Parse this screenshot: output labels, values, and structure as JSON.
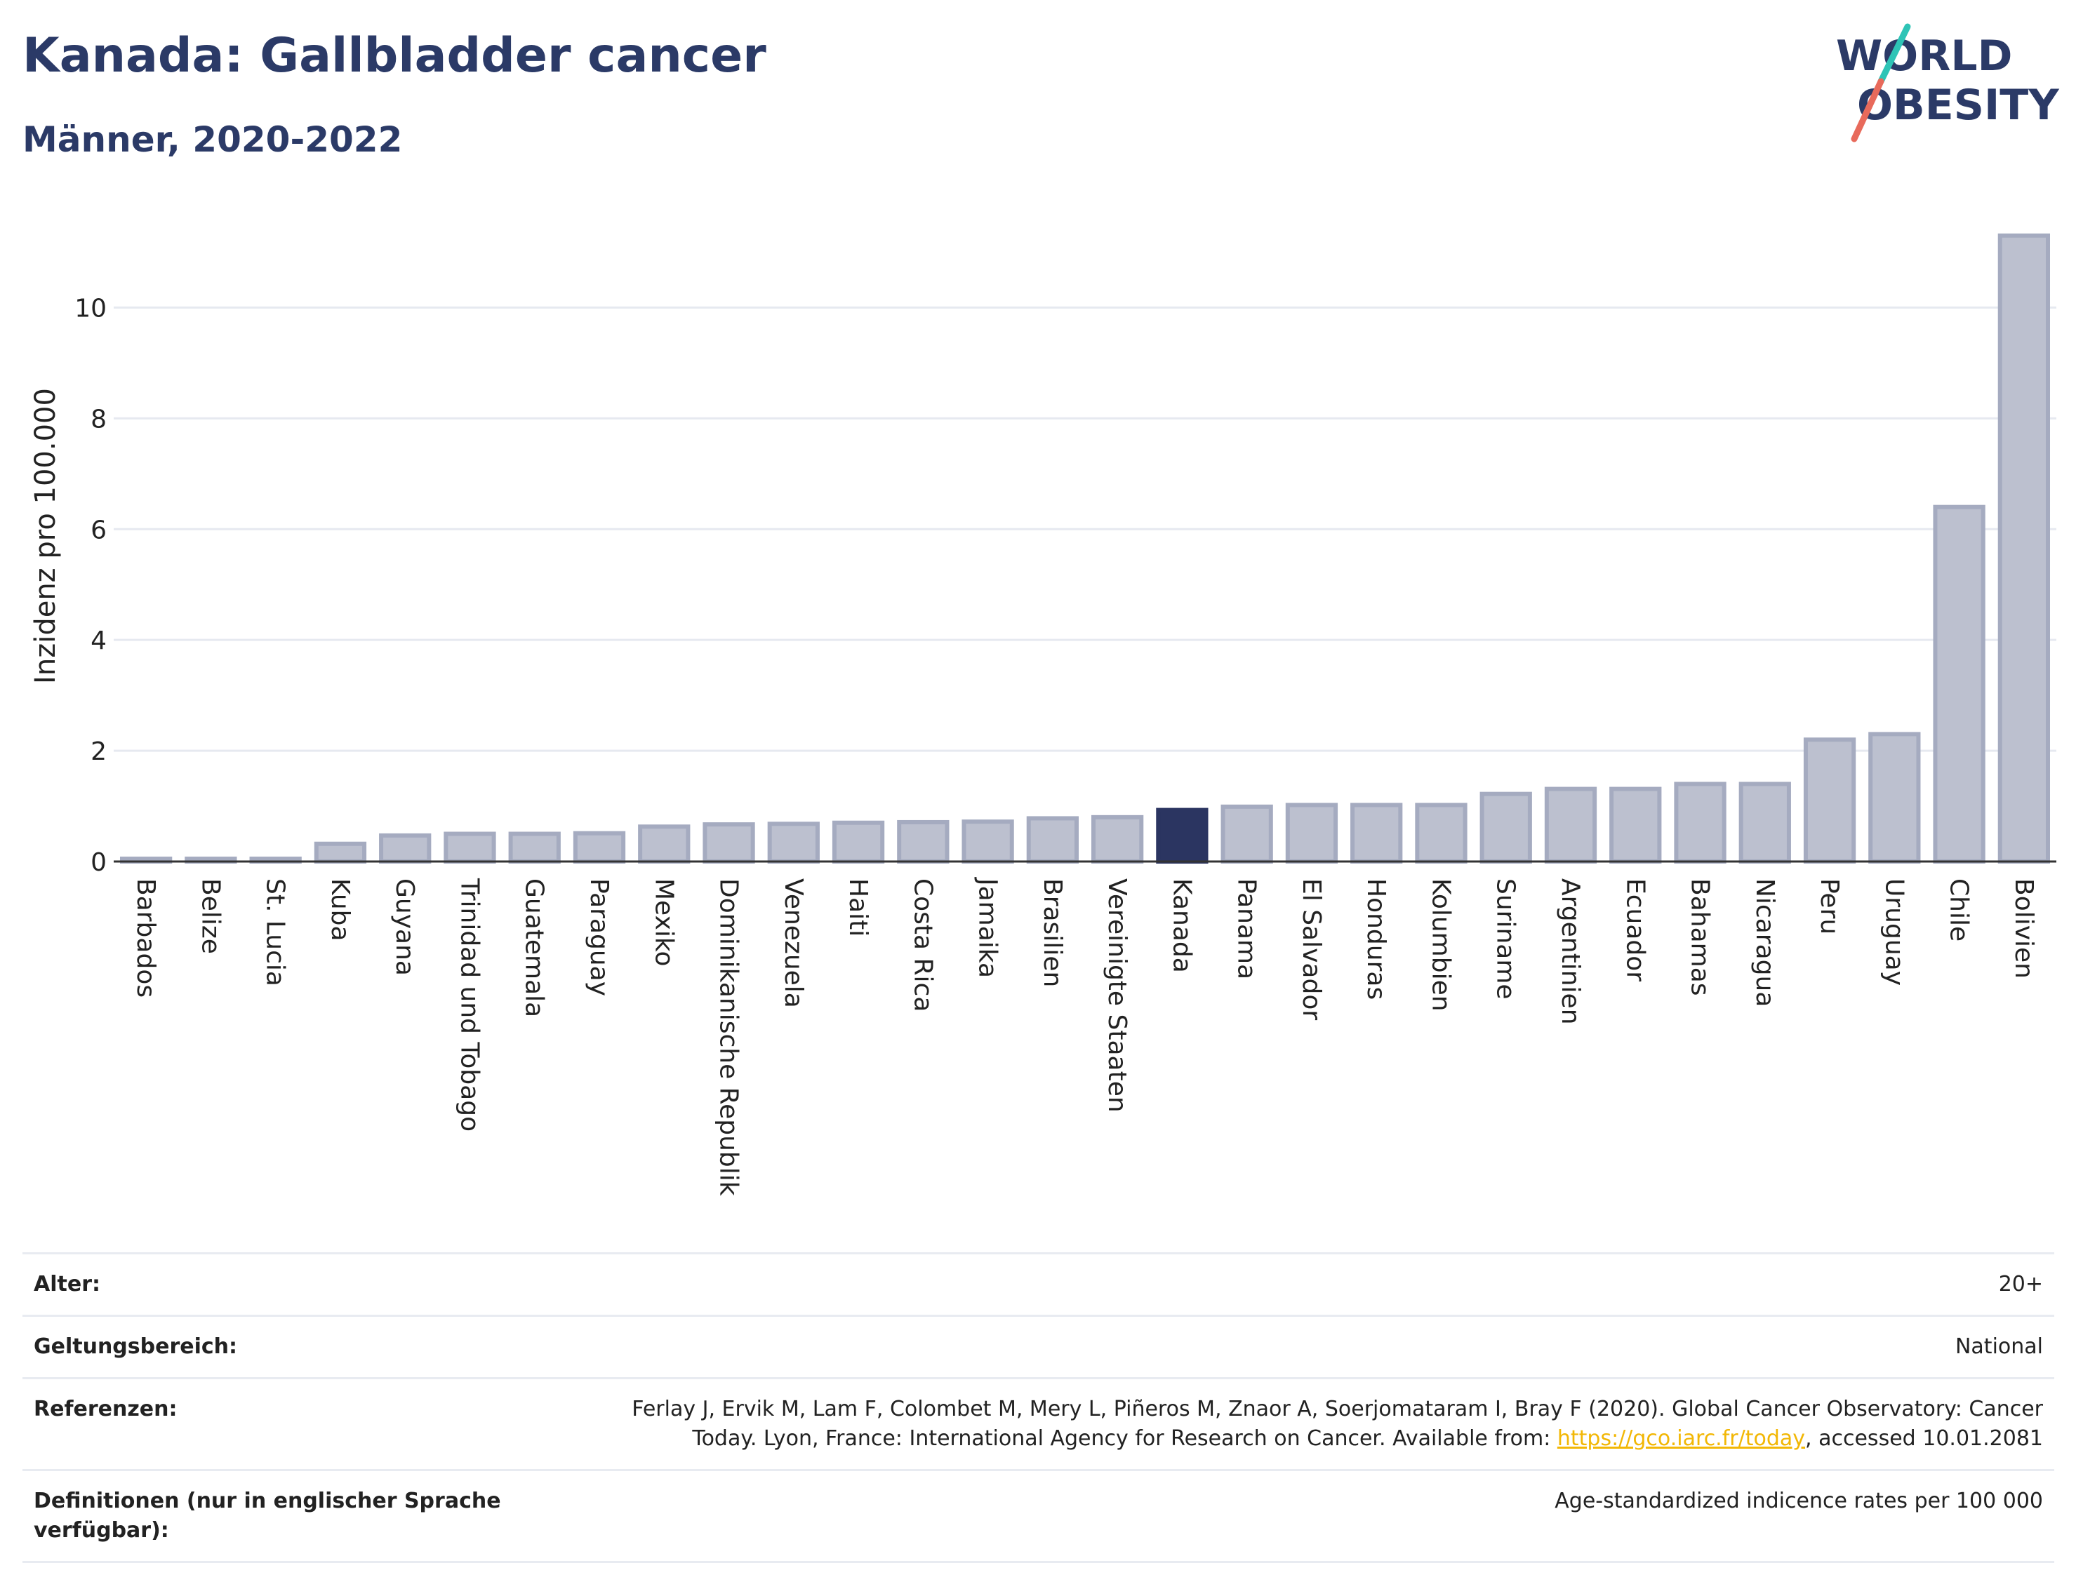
{
  "header": {
    "title": "Kanada: Gallbladder cancer",
    "subtitle": "Männer, 2020-2022"
  },
  "logo": {
    "line1": "WORLD",
    "line2": "OBESITY",
    "accent_colors": [
      "#2ec4b6",
      "#e86a5b"
    ]
  },
  "colors": {
    "bar_fill": "#bcc0cf",
    "bar_stroke": "#a5abc0",
    "highlight": "#2b3561",
    "grid": "#e6e9f0",
    "axis_text": "#222222"
  },
  "chart_data": {
    "type": "bar",
    "ylabel": "Inzidenz pro 100.000",
    "xlabel": "",
    "ylim": [
      0,
      11.5
    ],
    "yticks": [
      0,
      2,
      4,
      6,
      8,
      10
    ],
    "grid": true,
    "highlight": "Kanada",
    "categories": [
      "Barbados",
      "Belize",
      "St. Lucia",
      "Kuba",
      "Guyana",
      "Trinidad und Tobago",
      "Guatemala",
      "Paraguay",
      "Mexiko",
      "Dominikanische Republik",
      "Venezuela",
      "Haiti",
      "Costa Rica",
      "Jamaika",
      "Brasilien",
      "Vereinigte Staaten",
      "Kanada",
      "Panama",
      "El Salvador",
      "Honduras",
      "Kolumbien",
      "Suriname",
      "Argentinien",
      "Ecuador",
      "Bahamas",
      "Nicaragua",
      "Peru",
      "Uruguay",
      "Chile",
      "Bolivien"
    ],
    "values": [
      0.05,
      0.05,
      0.05,
      0.32,
      0.47,
      0.5,
      0.5,
      0.51,
      0.63,
      0.67,
      0.68,
      0.7,
      0.71,
      0.72,
      0.78,
      0.8,
      0.93,
      0.99,
      1.02,
      1.02,
      1.02,
      1.22,
      1.31,
      1.31,
      1.4,
      1.4,
      2.2,
      2.3,
      6.4,
      11.3
    ]
  },
  "meta": {
    "age_label": "Alter:",
    "age_value": "20+",
    "scope_label": "Geltungsbereich:",
    "scope_value": "National",
    "ref_label": "Referenzen:",
    "ref_text_before": "Ferlay J, Ervik M, Lam F, Colombet M, Mery L, Piñeros M, Znaor A, Soerjomataram I, Bray F (2020). Global Cancer Observatory: Cancer Today. Lyon, France: International Agency for Research on Cancer. Available from: ",
    "ref_link": "https://gco.iarc.fr/today",
    "ref_text_after": ", accessed 10.01.2081",
    "def_label": "Definitionen (nur in englischer Sprache verfügbar):",
    "def_value": "Age-standardized indicence rates per 100 000"
  }
}
